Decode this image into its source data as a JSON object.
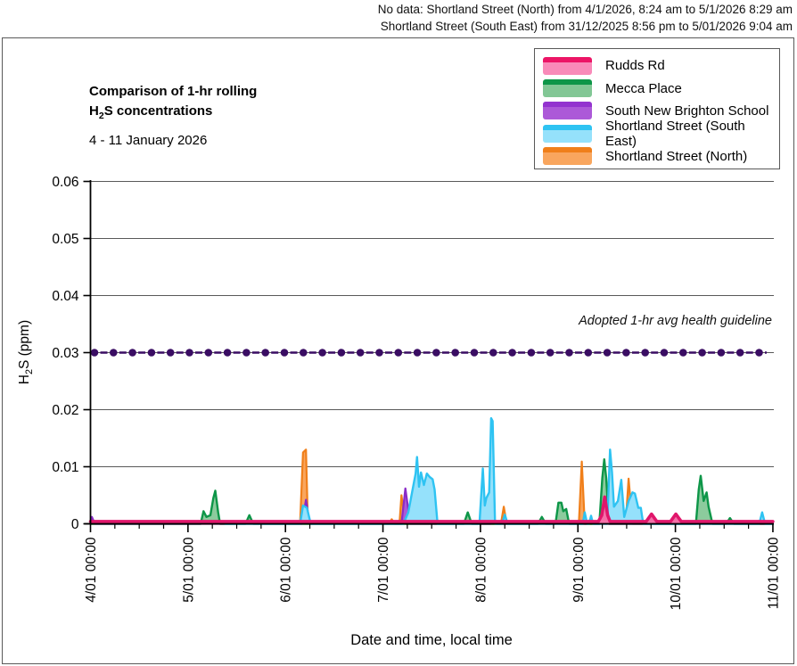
{
  "note": {
    "line1": "No data: Shortland Street (North) from 4/1/2026, 8:24 am to 5/1/2026 8:29 am",
    "line2": "Shortland Street (South East) from 31/12/2025 8:56 pm to 5/01/2026 9:04 am"
  },
  "title": {
    "line1": "Comparison of 1-hr rolling",
    "line2_parts": [
      "H",
      "2",
      "S concentrations"
    ],
    "subtitle": "4 - 11 January 2026"
  },
  "legend": {
    "items": [
      {
        "label": "Rudds Rd",
        "line": "#EC1566",
        "fill": "#F98AB9"
      },
      {
        "label": "Mecca Place",
        "line": "#0D9648",
        "fill": "#82C795"
      },
      {
        "label": "South New Brighton School",
        "line": "#9333CF",
        "fill": "#AC59D8"
      },
      {
        "label": "Shortland Street (South East)",
        "line": "#2EC3F2",
        "fill": "#95E1FB"
      },
      {
        "label": "Shortland Street (North)",
        "line": "#F07F1A",
        "fill": "#F9A65E"
      }
    ]
  },
  "chart_data": {
    "type": "area",
    "x_axis": {
      "label": "Date and time, local time",
      "ticks": [
        "4/01 00:00",
        "5/01 00:00",
        "6/01 00:00",
        "7/01 00:00",
        "8/01 00:00",
        "9/01 00:00",
        "10/01 00:00",
        "11/01 00:00"
      ],
      "x_unit": "days since 4 Jan 2026 00:00",
      "range_days": [
        0,
        7
      ],
      "minor_ticks_per_day": 3
    },
    "y_axis": {
      "label_parts": [
        "H",
        "2",
        "S (ppm)"
      ],
      "ticks": [
        "0",
        "0.01",
        "0.02",
        "0.03",
        "0.04",
        "0.05",
        "0.06"
      ],
      "range": [
        0,
        0.06
      ],
      "grid": true
    },
    "guideline": {
      "label": "Adopted 1-hr avg health guideline",
      "value": 0.03,
      "color": "#3A0D63"
    },
    "series": [
      {
        "name": "Shortland Street (North)",
        "line": "#F07F1A",
        "fill": "#F9A65E",
        "width": 2.2,
        "points": [
          [
            0,
            0
          ],
          [
            2.15,
            0
          ],
          [
            2.18,
            0.0125
          ],
          [
            2.21,
            0.013
          ],
          [
            2.23,
            0
          ],
          [
            3.06,
            0
          ],
          [
            3.09,
            0.0008
          ],
          [
            3.12,
            0
          ],
          [
            3.17,
            0
          ],
          [
            3.19,
            0.005
          ],
          [
            3.21,
            0.0025
          ],
          [
            3.23,
            0
          ],
          [
            4.21,
            0
          ],
          [
            4.24,
            0.003
          ],
          [
            4.27,
            0
          ],
          [
            5.01,
            0
          ],
          [
            5.04,
            0.0109
          ],
          [
            5.07,
            0
          ],
          [
            5.49,
            0
          ],
          [
            5.52,
            0.0079
          ],
          [
            5.56,
            0
          ],
          [
            7,
            0
          ]
        ]
      },
      {
        "name": "Mecca Place",
        "line": "#0D9648",
        "fill": "#8CCB9D",
        "width": 2.4,
        "points": [
          [
            0,
            0
          ],
          [
            1.13,
            0
          ],
          [
            1.16,
            0.0022
          ],
          [
            1.19,
            0.0012
          ],
          [
            1.23,
            0.0015
          ],
          [
            1.26,
            0.0045
          ],
          [
            1.28,
            0.0058
          ],
          [
            1.31,
            0.002
          ],
          [
            1.33,
            0
          ],
          [
            1.59,
            0
          ],
          [
            1.63,
            0.0015
          ],
          [
            1.67,
            0
          ],
          [
            3.83,
            0
          ],
          [
            3.87,
            0.002
          ],
          [
            3.91,
            0
          ],
          [
            4.59,
            0
          ],
          [
            4.63,
            0.0012
          ],
          [
            4.67,
            0
          ],
          [
            4.77,
            0
          ],
          [
            4.8,
            0.0037
          ],
          [
            4.83,
            0.0037
          ],
          [
            4.85,
            0.0022
          ],
          [
            4.88,
            0.0026
          ],
          [
            4.91,
            0
          ],
          [
            5.22,
            0
          ],
          [
            5.25,
            0.008
          ],
          [
            5.27,
            0.0113
          ],
          [
            5.29,
            0.008
          ],
          [
            5.32,
            0
          ],
          [
            6.21,
            0
          ],
          [
            6.24,
            0.006
          ],
          [
            6.26,
            0.0084
          ],
          [
            6.29,
            0.004
          ],
          [
            6.32,
            0.0055
          ],
          [
            6.34,
            0.003
          ],
          [
            6.38,
            0
          ],
          [
            6.52,
            0
          ],
          [
            6.56,
            0.001
          ],
          [
            6.6,
            0
          ],
          [
            7,
            0
          ]
        ]
      },
      {
        "name": "South New Brighton School",
        "line": "#8A2BC7",
        "fill": "#AC59D8",
        "width": 2.2,
        "points": [
          [
            0,
            0
          ],
          [
            0.015,
            0.0012
          ],
          [
            0.045,
            0
          ],
          [
            2.17,
            0
          ],
          [
            2.21,
            0.0042
          ],
          [
            2.25,
            0
          ],
          [
            3.19,
            0
          ],
          [
            3.23,
            0.0062
          ],
          [
            3.28,
            0
          ],
          [
            4.11,
            0
          ],
          [
            4.14,
            0.0008
          ],
          [
            4.17,
            0
          ],
          [
            5.1,
            0
          ],
          [
            5.13,
            0.0009
          ],
          [
            5.16,
            0
          ],
          [
            7,
            0
          ]
        ]
      },
      {
        "name": "Shortland Street (South East)",
        "line": "#2EC3F2",
        "fill": "#95E1FB",
        "width": 2.4,
        "points": [
          [
            1.38,
            0
          ],
          [
            2.15,
            0
          ],
          [
            2.18,
            0.0032
          ],
          [
            2.22,
            0.0028
          ],
          [
            2.26,
            0
          ],
          [
            3.21,
            0
          ],
          [
            3.26,
            0.002
          ],
          [
            3.31,
            0.0065
          ],
          [
            3.335,
            0.0088
          ],
          [
            3.35,
            0.0117
          ],
          [
            3.37,
            0.0065
          ],
          [
            3.39,
            0.009
          ],
          [
            3.42,
            0.0068
          ],
          [
            3.45,
            0.0088
          ],
          [
            3.48,
            0.0082
          ],
          [
            3.51,
            0.0078
          ],
          [
            3.53,
            0.006
          ],
          [
            3.56,
            0
          ],
          [
            3.99,
            0
          ],
          [
            4.025,
            0.0097
          ],
          [
            4.045,
            0.0032
          ],
          [
            4.06,
            0.0045
          ],
          [
            4.09,
            0.0055
          ],
          [
            4.11,
            0.0185
          ],
          [
            4.125,
            0.018
          ],
          [
            4.15,
            0
          ],
          [
            4.22,
            0
          ],
          [
            4.25,
            0.0016
          ],
          [
            4.28,
            0
          ],
          [
            5.05,
            0
          ],
          [
            5.07,
            0.002
          ],
          [
            5.095,
            0
          ],
          [
            5.115,
            0
          ],
          [
            5.135,
            0.0014
          ],
          [
            5.155,
            0
          ],
          [
            5.3,
            0
          ],
          [
            5.33,
            0.013
          ],
          [
            5.35,
            0.009
          ],
          [
            5.37,
            0.003
          ],
          [
            5.41,
            0.004
          ],
          [
            5.445,
            0.0077
          ],
          [
            5.475,
            0.0012
          ],
          [
            5.52,
            0.004
          ],
          [
            5.56,
            0.0055
          ],
          [
            5.585,
            0.0053
          ],
          [
            5.62,
            0.0028
          ],
          [
            5.645,
            0.0028
          ],
          [
            5.67,
            0
          ],
          [
            6.86,
            0
          ],
          [
            6.89,
            0.002
          ],
          [
            6.92,
            0
          ],
          [
            7,
            0
          ]
        ]
      },
      {
        "name": "Rudds Rd",
        "line": "#E0166B",
        "fill": "#F470A8",
        "width": 3.6,
        "points": [
          [
            0,
            0.0004
          ],
          [
            5.21,
            0.0004
          ],
          [
            5.245,
            0.0015
          ],
          [
            5.275,
            0.0047
          ],
          [
            5.305,
            0.0015
          ],
          [
            5.33,
            0.0004
          ],
          [
            5.7,
            0.0004
          ],
          [
            5.755,
            0.0017
          ],
          [
            5.81,
            0.0004
          ],
          [
            5.95,
            0.0004
          ],
          [
            6.005,
            0.0017
          ],
          [
            6.06,
            0.0004
          ],
          [
            7,
            0.0004
          ]
        ]
      }
    ]
  },
  "colors": {
    "grid": "#595959",
    "axis": "#000000",
    "frame": "#595959"
  }
}
